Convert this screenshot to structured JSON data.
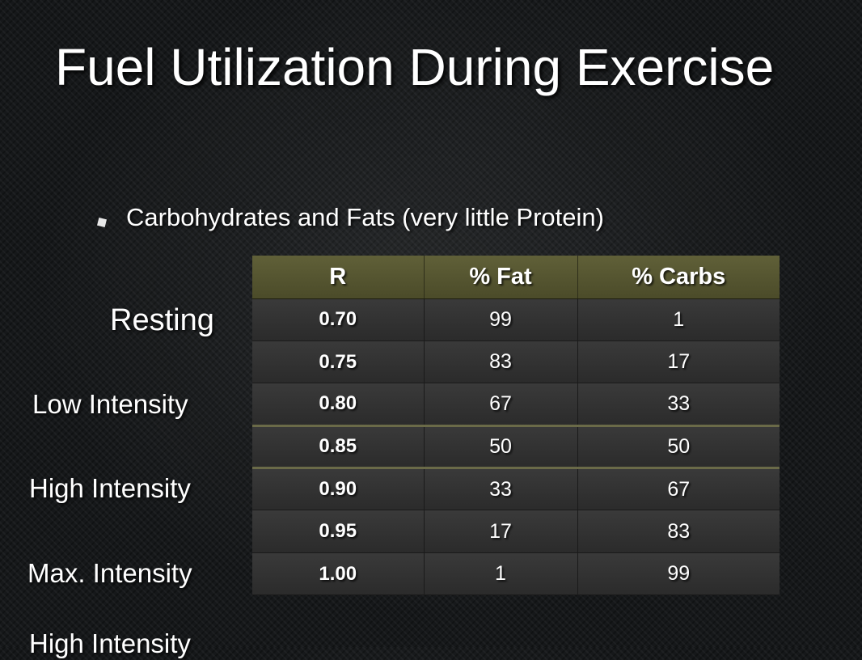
{
  "slide": {
    "title": "Fuel Utilization During Exercise",
    "bullet": "Carbohydrates and Fats (very little Protein)"
  },
  "row_labels": [
    "Resting",
    "Low Intensity",
    "High Intensity",
    "Max. Intensity",
    "High Intensity"
  ],
  "table": {
    "headers": [
      "R",
      "% Fat",
      "% Carbs"
    ],
    "rows": [
      [
        "0.70",
        "99",
        "1"
      ],
      [
        "0.75",
        "83",
        "17"
      ],
      [
        "0.80",
        "67",
        "33"
      ],
      [
        "0.85",
        "50",
        "50"
      ],
      [
        "0.90",
        "33",
        "67"
      ],
      [
        "0.95",
        "17",
        "83"
      ],
      [
        "1.00",
        "1",
        "99"
      ]
    ]
  },
  "colors": {
    "header_background": "#555530",
    "row_background": "#333333",
    "separator_line": "#6a6a48"
  },
  "icons": {
    "bullet": "square-bullet-icon"
  }
}
